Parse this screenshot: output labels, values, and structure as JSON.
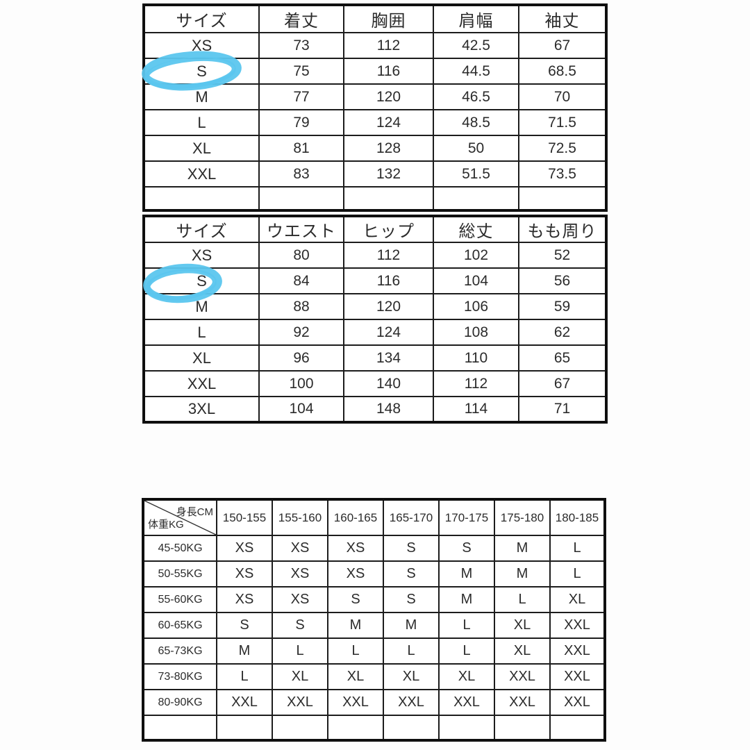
{
  "page": {
    "background": "#fdfdfd",
    "text_color": "#2b2b2b",
    "border_color": "#1c1c1c"
  },
  "highlight": {
    "shape": "hand-drawn-ellipse",
    "color": "#5bc6ee",
    "circled_size_tops": "S",
    "circled_size_bottoms": "S"
  },
  "tops_table": {
    "headers": [
      "サイズ",
      "着丈",
      "胸囲",
      "肩幅",
      "袖丈"
    ],
    "rows": [
      [
        "XS",
        "73",
        "112",
        "42.5",
        "67"
      ],
      [
        "S",
        "75",
        "116",
        "44.5",
        "68.5"
      ],
      [
        "M",
        "77",
        "120",
        "46.5",
        "70"
      ],
      [
        "L",
        "79",
        "124",
        "48.5",
        "71.5"
      ],
      [
        "XL",
        "81",
        "128",
        "50",
        "72.5"
      ],
      [
        "XXL",
        "83",
        "132",
        "51.5",
        "73.5"
      ],
      [
        "",
        "",
        "",
        "",
        ""
      ]
    ]
  },
  "bottoms_table": {
    "headers": [
      "サイズ",
      "ウエスト",
      "ヒップ",
      "総丈",
      "もも周り"
    ],
    "rows": [
      [
        "XS",
        "80",
        "112",
        "102",
        "52"
      ],
      [
        "S",
        "84",
        "116",
        "104",
        "56"
      ],
      [
        "M",
        "88",
        "120",
        "106",
        "59"
      ],
      [
        "L",
        "92",
        "124",
        "108",
        "62"
      ],
      [
        "XL",
        "96",
        "134",
        "110",
        "65"
      ],
      [
        "XXL",
        "100",
        "140",
        "112",
        "67"
      ],
      [
        "3XL",
        "104",
        "148",
        "114",
        "71"
      ]
    ]
  },
  "height_weight_table": {
    "corner_top_right": "身長CM",
    "corner_bottom_left": "体重KG",
    "height_columns": [
      "150-155",
      "155-160",
      "160-165",
      "165-170",
      "170-175",
      "175-180",
      "180-185"
    ],
    "rows": [
      [
        "45-50KG",
        "XS",
        "XS",
        "XS",
        "S",
        "S",
        "M",
        "L"
      ],
      [
        "50-55KG",
        "XS",
        "XS",
        "XS",
        "S",
        "M",
        "M",
        "L"
      ],
      [
        "55-60KG",
        "XS",
        "XS",
        "S",
        "S",
        "M",
        "L",
        "XL"
      ],
      [
        "60-65KG",
        "S",
        "S",
        "M",
        "M",
        "L",
        "XL",
        "XXL"
      ],
      [
        "65-73KG",
        "M",
        "L",
        "L",
        "L",
        "L",
        "XL",
        "XXL"
      ],
      [
        "73-80KG",
        "L",
        "XL",
        "XL",
        "XL",
        "XL",
        "XXL",
        "XXL"
      ],
      [
        "80-90KG",
        "XXL",
        "XXL",
        "XXL",
        "XXL",
        "XXL",
        "XXL",
        "XXL"
      ],
      [
        "",
        "",
        "",
        "",
        "",
        "",
        "",
        ""
      ]
    ]
  }
}
